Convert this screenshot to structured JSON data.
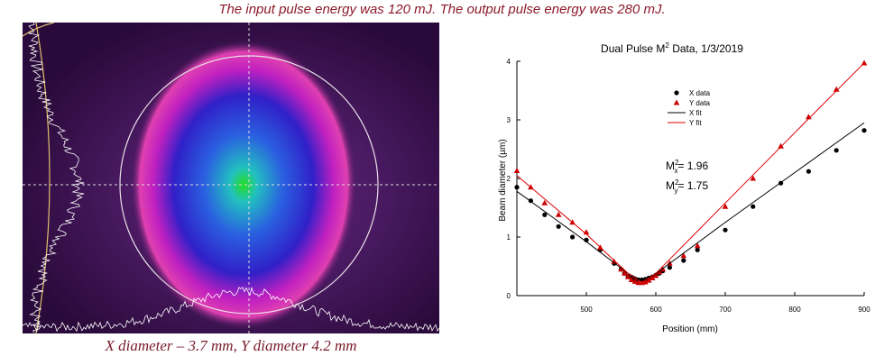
{
  "caption_top": "The input pulse energy was 120 mJ. The output pulse energy was 280 mJ.",
  "figure_caption": "X diameter – 3.7 mm, Y diameter 4.2 mm",
  "chart_data": {
    "type": "scatter",
    "title": {
      "before": "Dual Pulse M",
      "sup": "2",
      "after": " Data, 1/3/2019"
    },
    "x_label": "Position (mm)",
    "y_label": "Beam diameter (µm)",
    "xlim": [
      400,
      900
    ],
    "ylim": [
      0,
      4
    ],
    "xticks": [
      500,
      600,
      700,
      800,
      900
    ],
    "yticks": [
      0,
      1,
      2,
      3,
      4
    ],
    "series": [
      {
        "name": "X data",
        "color": "#000000",
        "marker": "circle",
        "x": [
          400,
          420,
          440,
          460,
          480,
          500,
          520,
          540,
          550,
          555,
          560,
          565,
          570,
          575,
          580,
          585,
          590,
          595,
          600,
          605,
          610,
          620,
          640,
          660,
          700,
          740,
          780,
          820,
          860,
          900
        ],
        "values": [
          1.85,
          1.62,
          1.38,
          1.18,
          1.0,
          0.95,
          0.78,
          0.55,
          0.45,
          0.38,
          0.33,
          0.3,
          0.28,
          0.27,
          0.27,
          0.28,
          0.3,
          0.32,
          0.35,
          0.38,
          0.42,
          0.48,
          0.6,
          0.78,
          1.12,
          1.52,
          1.92,
          2.12,
          2.48,
          2.82
        ]
      },
      {
        "name": "Y data",
        "color": "#cc0000",
        "marker": "triangle",
        "x": [
          400,
          420,
          440,
          460,
          480,
          500,
          520,
          540,
          550,
          555,
          560,
          565,
          570,
          575,
          580,
          585,
          590,
          595,
          600,
          605,
          610,
          620,
          640,
          660,
          700,
          740,
          780,
          820,
          860,
          900
        ],
        "values": [
          2.13,
          1.85,
          1.58,
          1.38,
          1.25,
          1.08,
          0.82,
          0.58,
          0.45,
          0.38,
          0.32,
          0.27,
          0.24,
          0.22,
          0.22,
          0.23,
          0.26,
          0.3,
          0.34,
          0.4,
          0.45,
          0.55,
          0.68,
          0.85,
          1.52,
          2.0,
          2.55,
          3.05,
          3.52,
          3.97
        ]
      },
      {
        "name": "X fit",
        "color": "#000000",
        "marker": "line",
        "x": [
          400,
          450,
          500,
          540,
          560,
          580,
          600,
          620,
          660,
          700,
          800,
          900
        ],
        "values": [
          1.78,
          1.35,
          0.92,
          0.56,
          0.38,
          0.26,
          0.37,
          0.55,
          0.9,
          1.25,
          2.1,
          2.95
        ]
      },
      {
        "name": "Y fit",
        "color": "#dd0000",
        "marker": "line",
        "x": [
          400,
          450,
          500,
          540,
          560,
          580,
          600,
          620,
          660,
          700,
          800,
          900
        ],
        "values": [
          2.05,
          1.55,
          1.05,
          0.6,
          0.38,
          0.22,
          0.38,
          0.62,
          1.1,
          1.58,
          2.78,
          3.97
        ]
      }
    ],
    "annotations": [
      {
        "base": "M",
        "sup": "2",
        "sub": "x",
        "text": "= 1.96"
      },
      {
        "base": "M",
        "sup": "2",
        "sub": "y",
        "text": "= 1.75"
      }
    ]
  }
}
